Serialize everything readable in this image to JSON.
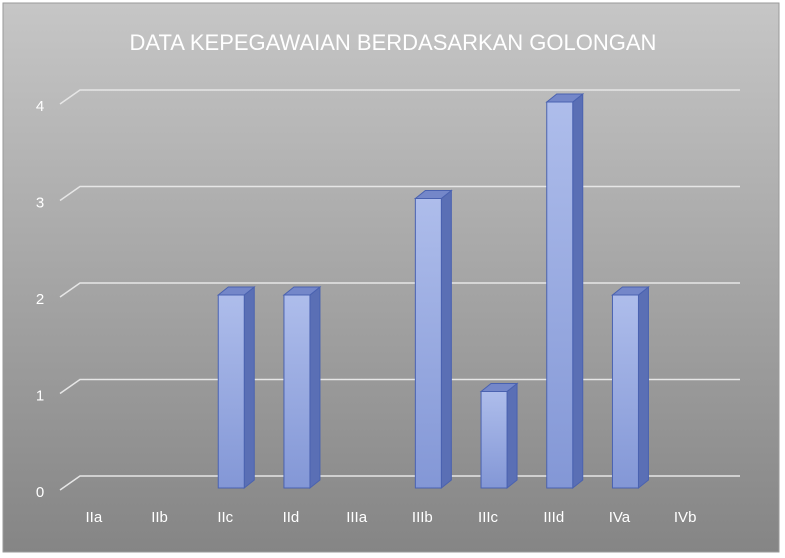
{
  "chart_data": {
    "type": "bar",
    "title": "DATA KEPEGAWAIAN  BERDASARKAN  GOLONGAN",
    "categories": [
      "IIa",
      "IIb",
      "IIc",
      "IId",
      "IIIa",
      "IIIb",
      "IIIc",
      "IIId",
      "IVa",
      "IVb"
    ],
    "values": [
      0,
      0,
      2,
      2,
      0,
      3,
      1,
      4,
      2,
      0
    ],
    "color": "#8ea4e0",
    "ylim": [
      0,
      4
    ],
    "yticks": [
      0,
      1,
      2,
      3,
      4
    ],
    "grid": true
  }
}
